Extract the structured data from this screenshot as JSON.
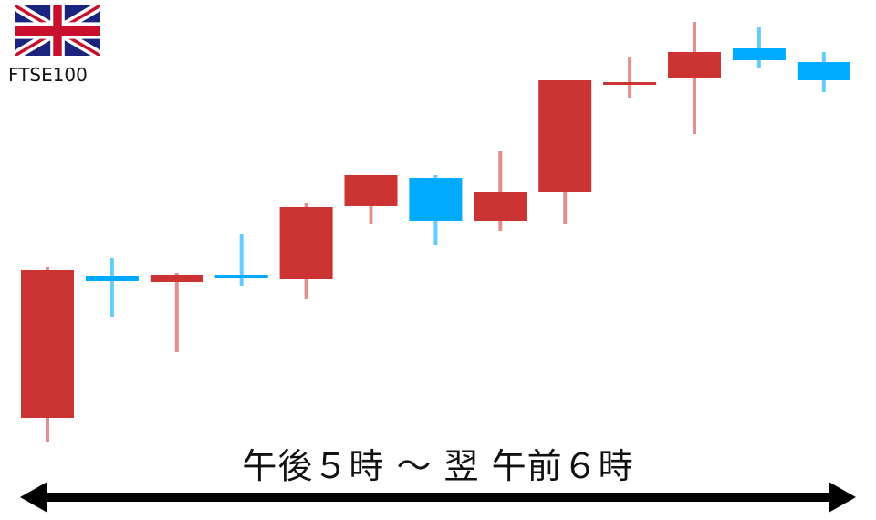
{
  "index_label": "FTSE100",
  "flag_icon": "uk-flag-icon",
  "period_label": "午後５時 ～ 翌 午前６時",
  "colors": {
    "up": "#cc3333",
    "down": "#00aaff",
    "text": "#111111"
  },
  "chart_data": {
    "type": "candlestick",
    "title": "",
    "xlabel": "午後５時 ～ 翌 午前６時",
    "ylabel": "",
    "axes_shown": false,
    "grid": false,
    "value_units": "relative price level (no axis printed)",
    "ylim": [
      0,
      490
    ],
    "candles": [
      {
        "open": 42,
        "high": 207,
        "low": 15,
        "close": 204
      },
      {
        "open": 198,
        "high": 217,
        "low": 153,
        "close": 192
      },
      {
        "open": 191,
        "high": 201,
        "low": 114,
        "close": 199
      },
      {
        "open": 199,
        "high": 244,
        "low": 186,
        "close": 195
      },
      {
        "open": 194,
        "high": 278,
        "low": 172,
        "close": 273
      },
      {
        "open": 274,
        "high": 308,
        "low": 255,
        "close": 308
      },
      {
        "open": 305,
        "high": 308,
        "low": 231,
        "close": 258
      },
      {
        "open": 258,
        "high": 335,
        "low": 247,
        "close": 289
      },
      {
        "open": 290,
        "high": 412,
        "low": 255,
        "close": 412
      },
      {
        "open": 408,
        "high": 438,
        "low": 393,
        "close": 410
      },
      {
        "open": 415,
        "high": 476,
        "low": 353,
        "close": 443
      },
      {
        "open": 447,
        "high": 470,
        "low": 425,
        "close": 434
      },
      {
        "open": 432,
        "high": 443,
        "low": 399,
        "close": 412
      }
    ]
  }
}
